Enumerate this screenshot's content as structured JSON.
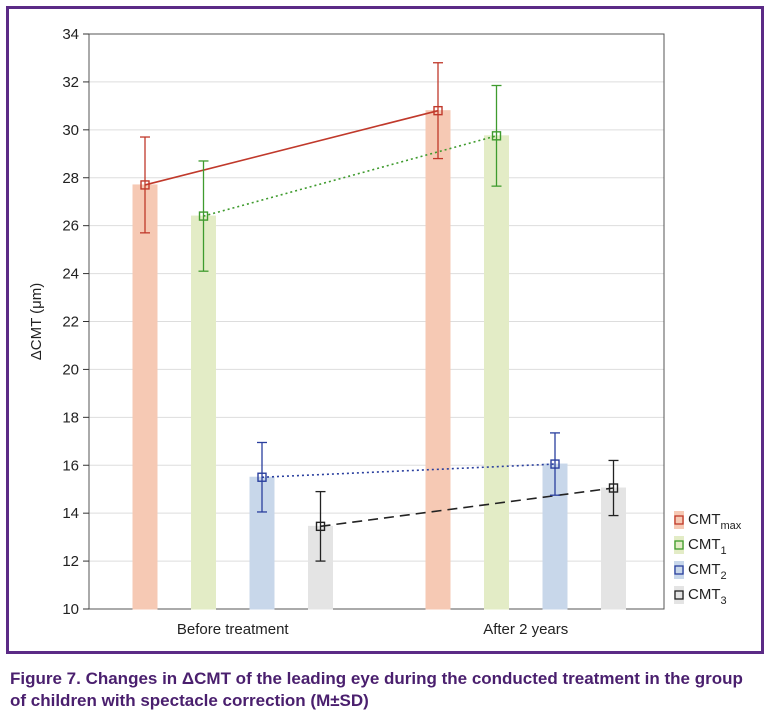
{
  "chart_data": {
    "type": "bar",
    "ylabel": "ΔCMT (μm)",
    "ylim": [
      10,
      34
    ],
    "yticks": [
      10,
      12,
      14,
      16,
      18,
      20,
      22,
      24,
      26,
      28,
      30,
      32,
      34
    ],
    "categories": [
      "Before treatment",
      "After 2 years"
    ],
    "grid": true,
    "legend_position": "right",
    "series": [
      {
        "name": "CMT",
        "sub": "max",
        "color": "#c0392b",
        "fill": "#f6c9b4",
        "line": "solid",
        "values": [
          27.7,
          30.8
        ],
        "sd": [
          2.0,
          2.0
        ]
      },
      {
        "name": "CMT",
        "sub": "1",
        "color": "#3f9b2e",
        "fill": "#e3ecc6",
        "line": "dotted",
        "values": [
          26.4,
          29.75
        ],
        "sd": [
          2.3,
          2.1
        ]
      },
      {
        "name": "CMT",
        "sub": "2",
        "color": "#2a3f9e",
        "fill": "#c8d7ea",
        "line": "dotted",
        "values": [
          15.5,
          16.05
        ],
        "sd": [
          1.45,
          1.3
        ]
      },
      {
        "name": "CMT",
        "sub": "3",
        "color": "#222222",
        "fill": "#e4e4e4",
        "line": "dashed",
        "values": [
          13.45,
          15.05
        ],
        "sd": [
          1.45,
          1.15
        ]
      }
    ]
  },
  "caption": "Figure 7. Changes in ΔCMT of the leading eye during the conducted treatment in the group of children with spectacle correction (M±SD)"
}
